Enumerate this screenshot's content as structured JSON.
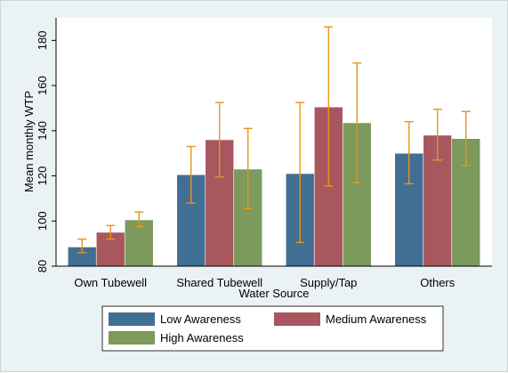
{
  "chart_data": {
    "type": "bar",
    "title": "",
    "xlabel": "Water Source",
    "ylabel": "Mean monthly WTP",
    "categories": [
      "Own Tubewell",
      "Shared Tubewell",
      "Supply/Tap",
      "Others"
    ],
    "ylim": [
      80,
      190
    ],
    "yticks": [
      80,
      100,
      120,
      140,
      160,
      180
    ],
    "grid": false,
    "legend_position": "bottom",
    "error_bar_color": "#e8951a",
    "series": [
      {
        "name": "Low Awareness",
        "color": "#416e93",
        "values": [
          88.5,
          120.5,
          121,
          130
        ],
        "err_low": [
          86,
          108,
          90.5,
          116.5
        ],
        "err_high": [
          92,
          133,
          152.5,
          144
        ]
      },
      {
        "name": "Medium Awareness",
        "color": "#a8575f",
        "values": [
          95,
          136,
          150.5,
          138
        ],
        "err_low": [
          92,
          119.5,
          115.5,
          127
        ],
        "err_high": [
          98,
          152.5,
          186,
          149.5
        ]
      },
      {
        "name": "High Awareness",
        "color": "#7b9a5b",
        "values": [
          100.5,
          123,
          143.5,
          136.5
        ],
        "err_low": [
          97.5,
          105.5,
          117,
          124.5
        ],
        "err_high": [
          104,
          141,
          170,
          148.5
        ]
      }
    ]
  }
}
